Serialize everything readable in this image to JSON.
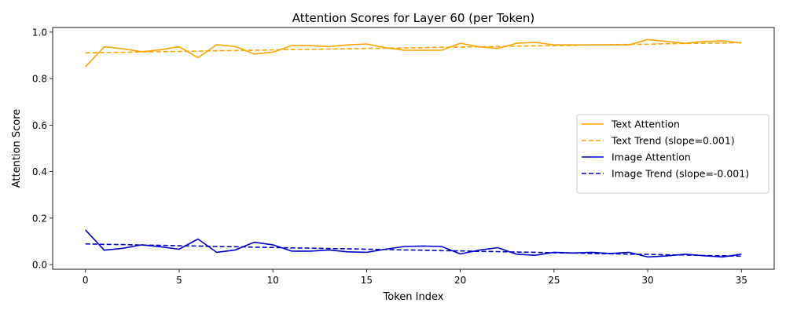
{
  "chart_data": {
    "type": "line",
    "title": "Attention Scores for Layer 60 (per Token)",
    "xlabel": "Token Index",
    "ylabel": "Attention Score",
    "xlim": [
      -1.75,
      36.75
    ],
    "ylim": [
      -0.02,
      1.02
    ],
    "xticks": [
      0,
      5,
      10,
      15,
      20,
      25,
      30,
      35
    ],
    "yticks": [
      0.0,
      0.2,
      0.4,
      0.6,
      0.8,
      1.0
    ],
    "grid": false,
    "legend_position": "center-right",
    "x": [
      0,
      1,
      2,
      3,
      4,
      5,
      6,
      7,
      8,
      9,
      10,
      11,
      12,
      13,
      14,
      15,
      16,
      17,
      18,
      19,
      20,
      21,
      22,
      23,
      24,
      25,
      26,
      27,
      28,
      29,
      30,
      31,
      32,
      33,
      34,
      35
    ],
    "series": [
      {
        "name": "Text Attention",
        "style": "solid",
        "color": "#FFA500",
        "values": [
          0.851,
          0.937,
          0.928,
          0.916,
          0.924,
          0.937,
          0.89,
          0.946,
          0.938,
          0.906,
          0.914,
          0.942,
          0.942,
          0.938,
          0.945,
          0.949,
          0.933,
          0.922,
          0.922,
          0.922,
          0.952,
          0.937,
          0.93,
          0.952,
          0.956,
          0.945,
          0.945,
          0.945,
          0.945,
          0.945,
          0.968,
          0.96,
          0.952,
          0.96,
          0.963,
          0.953
        ]
      },
      {
        "name": "Text Trend (slope=0.001)",
        "style": "dashed",
        "color": "#FFA500",
        "values": [
          0.911,
          0.912,
          0.913,
          0.915,
          0.916,
          0.917,
          0.918,
          0.92,
          0.921,
          0.922,
          0.923,
          0.925,
          0.926,
          0.927,
          0.928,
          0.93,
          0.931,
          0.932,
          0.933,
          0.935,
          0.936,
          0.937,
          0.938,
          0.94,
          0.941,
          0.942,
          0.943,
          0.945,
          0.946,
          0.947,
          0.948,
          0.95,
          0.951,
          0.952,
          0.953,
          0.955
        ]
      },
      {
        "name": "Image Attention",
        "style": "solid",
        "color": "#0000CD",
        "values": [
          0.149,
          0.062,
          0.07,
          0.085,
          0.077,
          0.066,
          0.11,
          0.053,
          0.063,
          0.096,
          0.085,
          0.058,
          0.058,
          0.063,
          0.055,
          0.053,
          0.066,
          0.078,
          0.08,
          0.078,
          0.046,
          0.062,
          0.073,
          0.045,
          0.04,
          0.053,
          0.05,
          0.053,
          0.048,
          0.053,
          0.033,
          0.037,
          0.045,
          0.038,
          0.033,
          0.045
        ]
      },
      {
        "name": "Image Trend (slope=-0.001)",
        "style": "dashed",
        "color": "#0000CD",
        "values": [
          0.089,
          0.087,
          0.086,
          0.084,
          0.083,
          0.081,
          0.08,
          0.078,
          0.077,
          0.075,
          0.074,
          0.072,
          0.071,
          0.069,
          0.068,
          0.066,
          0.065,
          0.063,
          0.062,
          0.06,
          0.059,
          0.057,
          0.056,
          0.054,
          0.053,
          0.051,
          0.05,
          0.048,
          0.047,
          0.045,
          0.044,
          0.042,
          0.041,
          0.039,
          0.038,
          0.036
        ]
      }
    ]
  }
}
